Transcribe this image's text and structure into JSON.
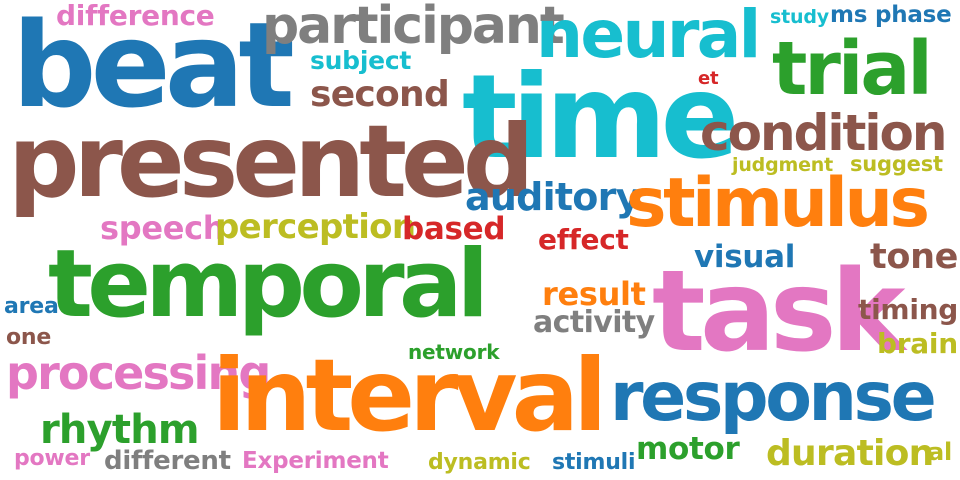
{
  "words": [
    {
      "text": "difference",
      "color": "#e377c2"
    },
    {
      "text": "beat",
      "color": "#1f77b4"
    },
    {
      "text": "participant",
      "color": "#7f7f7f"
    },
    {
      "text": "neural",
      "color": "#17becf"
    },
    {
      "text": "study",
      "color": "#17becf"
    },
    {
      "text": "ms",
      "color": "#1f77b4"
    },
    {
      "text": "phase",
      "color": "#1f77b4"
    },
    {
      "text": "trial",
      "color": "#2ca02c"
    },
    {
      "text": "subject",
      "color": "#17becf"
    },
    {
      "text": "et",
      "color": "#d62728"
    },
    {
      "text": "second",
      "color": "#8c564b"
    },
    {
      "text": "time",
      "color": "#17becf"
    },
    {
      "text": "presented",
      "color": "#8c564b"
    },
    {
      "text": "condition",
      "color": "#8c564b"
    },
    {
      "text": "judgment",
      "color": "#bcbd22"
    },
    {
      "text": "suggest",
      "color": "#bcbd22"
    },
    {
      "text": "auditory",
      "color": "#1f77b4"
    },
    {
      "text": "stimulus",
      "color": "#ff7f0e"
    },
    {
      "text": "speech",
      "color": "#e377c2"
    },
    {
      "text": "perception",
      "color": "#bcbd22"
    },
    {
      "text": "based",
      "color": "#d62728"
    },
    {
      "text": "effect",
      "color": "#d62728"
    },
    {
      "text": "temporal",
      "color": "#2ca02c"
    },
    {
      "text": "visual",
      "color": "#1f77b4"
    },
    {
      "text": "tone",
      "color": "#8c564b"
    },
    {
      "text": "task",
      "color": "#e377c2"
    },
    {
      "text": "area",
      "color": "#1f77b4"
    },
    {
      "text": "result",
      "color": "#ff7f0e"
    },
    {
      "text": "activity",
      "color": "#7f7f7f"
    },
    {
      "text": "timing",
      "color": "#8c564b"
    },
    {
      "text": "one",
      "color": "#8c564b"
    },
    {
      "text": "network",
      "color": "#2ca02c"
    },
    {
      "text": "brain",
      "color": "#bcbd22"
    },
    {
      "text": "processing",
      "color": "#e377c2"
    },
    {
      "text": "interval",
      "color": "#ff7f0e"
    },
    {
      "text": "response",
      "color": "#1f77b4"
    },
    {
      "text": "rhythm",
      "color": "#2ca02c"
    },
    {
      "text": "motor",
      "color": "#2ca02c"
    },
    {
      "text": "duration",
      "color": "#bcbd22"
    },
    {
      "text": "power",
      "color": "#e377c2"
    },
    {
      "text": "different",
      "color": "#7f7f7f"
    },
    {
      "text": "Experiment",
      "color": "#e377c2"
    },
    {
      "text": "dynamic",
      "color": "#bcbd22"
    },
    {
      "text": "stimuli",
      "color": "#1f77b4"
    },
    {
      "text": "al",
      "color": "#bcbd22"
    }
  ]
}
